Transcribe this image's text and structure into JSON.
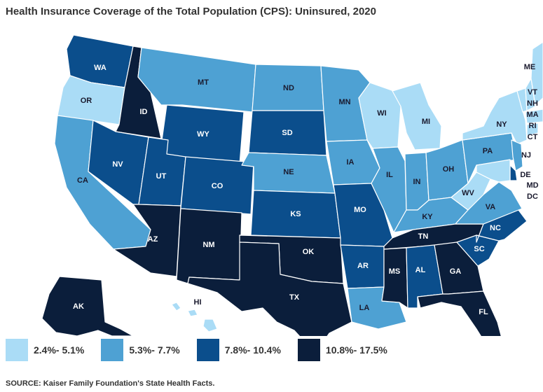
{
  "title": "Health Insurance Coverage of the Total Population (CPS): Uninsured, 2020",
  "source": "SOURCE: Kaiser Family Foundation's State Health Facts.",
  "colors": {
    "bin1": "#aadcf6",
    "bin2": "#4ea1d3",
    "bin3": "#0b4e8c",
    "bin4": "#0b1e3b"
  },
  "legend": [
    {
      "label": "2.4%- 5.1%",
      "bin": "bin1"
    },
    {
      "label": "5.3%- 7.7%",
      "bin": "bin2"
    },
    {
      "label": "7.8%- 10.4%",
      "bin": "bin3"
    },
    {
      "label": "10.8%- 17.5%",
      "bin": "bin4"
    }
  ],
  "states": {
    "WA": {
      "label": "WA",
      "bin": "bin3"
    },
    "OR": {
      "label": "OR",
      "bin": "bin1"
    },
    "CA": {
      "label": "CA",
      "bin": "bin2"
    },
    "ID": {
      "label": "ID",
      "bin": "bin4"
    },
    "NV": {
      "label": "NV",
      "bin": "bin3"
    },
    "MT": {
      "label": "MT",
      "bin": "bin2"
    },
    "WY": {
      "label": "WY",
      "bin": "bin3"
    },
    "UT": {
      "label": "UT",
      "bin": "bin3"
    },
    "AZ": {
      "label": "AZ",
      "bin": "bin4"
    },
    "CO": {
      "label": "CO",
      "bin": "bin3"
    },
    "NM": {
      "label": "NM",
      "bin": "bin4"
    },
    "ND": {
      "label": "ND",
      "bin": "bin2"
    },
    "SD": {
      "label": "SD",
      "bin": "bin3"
    },
    "NE": {
      "label": "NE",
      "bin": "bin2"
    },
    "KS": {
      "label": "KS",
      "bin": "bin3"
    },
    "OK": {
      "label": "OK",
      "bin": "bin4"
    },
    "TX": {
      "label": "TX",
      "bin": "bin4"
    },
    "MN": {
      "label": "MN",
      "bin": "bin2"
    },
    "IA": {
      "label": "IA",
      "bin": "bin2"
    },
    "MO": {
      "label": "MO",
      "bin": "bin3"
    },
    "AR": {
      "label": "AR",
      "bin": "bin3"
    },
    "LA": {
      "label": "LA",
      "bin": "bin2"
    },
    "WI": {
      "label": "WI",
      "bin": "bin1"
    },
    "IL": {
      "label": "IL",
      "bin": "bin2"
    },
    "MI": {
      "label": "MI",
      "bin": "bin1"
    },
    "IN": {
      "label": "IN",
      "bin": "bin2"
    },
    "OH": {
      "label": "OH",
      "bin": "bin2"
    },
    "KY": {
      "label": "KY",
      "bin": "bin2"
    },
    "TN": {
      "label": "TN",
      "bin": "bin4"
    },
    "MS": {
      "label": "MS",
      "bin": "bin4"
    },
    "AL": {
      "label": "AL",
      "bin": "bin3"
    },
    "GA": {
      "label": "GA",
      "bin": "bin4"
    },
    "FL": {
      "label": "FL",
      "bin": "bin4"
    },
    "SC": {
      "label": "SC",
      "bin": "bin3"
    },
    "NC": {
      "label": "NC",
      "bin": "bin3"
    },
    "VA": {
      "label": "VA",
      "bin": "bin2"
    },
    "WV": {
      "label": "WV",
      "bin": "bin1"
    },
    "PA": {
      "label": "PA",
      "bin": "bin2"
    },
    "NY": {
      "label": "NY",
      "bin": "bin1"
    },
    "NJ": {
      "label": "NJ",
      "bin": "bin2"
    },
    "DE": {
      "label": "DE",
      "bin": "bin3"
    },
    "MD": {
      "label": "MD",
      "bin": "bin1"
    },
    "DC": {
      "label": "DC",
      "bin": "bin1"
    },
    "CT": {
      "label": "CT",
      "bin": "bin1"
    },
    "RI": {
      "label": "RI",
      "bin": "bin1"
    },
    "MA": {
      "label": "MA",
      "bin": "bin1"
    },
    "VT": {
      "label": "VT",
      "bin": "bin1"
    },
    "NH": {
      "label": "NH",
      "bin": "bin1"
    },
    "ME": {
      "label": "ME",
      "bin": "bin1"
    },
    "AK": {
      "label": "AK",
      "bin": "bin4"
    },
    "HI": {
      "label": "HI",
      "bin": "bin1"
    }
  }
}
